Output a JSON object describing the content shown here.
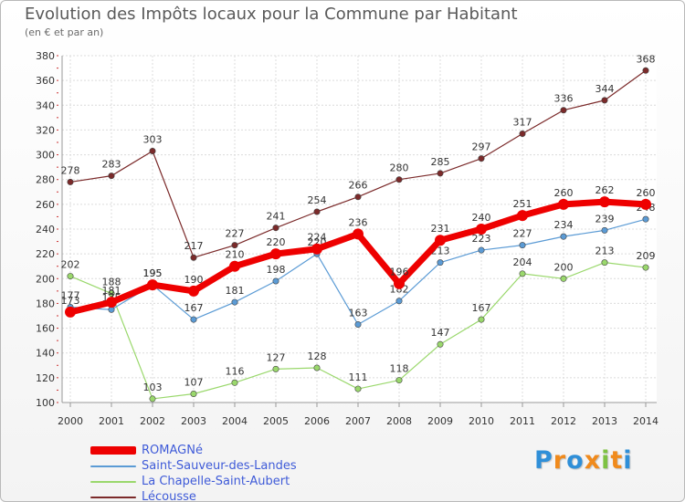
{
  "title": "Evolution des Impôts locaux pour la Commune par Habitant",
  "subtitle": "(en € et par an)",
  "brand": {
    "letters": [
      "P",
      "r",
      "o",
      "x",
      "i",
      "t",
      "i"
    ],
    "colors": [
      "#2f8fd8",
      "#f08a1c",
      "#2f8fd8",
      "#f08a1c",
      "#7dc242",
      "#f08a1c",
      "#2f8fd8"
    ]
  },
  "chart_data": {
    "type": "line",
    "x": [
      2000,
      2001,
      2002,
      2003,
      2004,
      2005,
      2006,
      2007,
      2008,
      2009,
      2010,
      2011,
      2012,
      2013,
      2014
    ],
    "ylim": [
      100,
      380
    ],
    "yticks": [
      100,
      120,
      140,
      160,
      180,
      200,
      220,
      240,
      260,
      280,
      300,
      320,
      340,
      360,
      380
    ],
    "grid": true,
    "legend_position": "bottom-left",
    "series": [
      {
        "name": "Lécousse",
        "color": "#7b2a2a",
        "values": [
          278,
          283,
          303,
          217,
          227,
          241,
          254,
          266,
          280,
          285,
          297,
          317,
          336,
          344,
          368
        ]
      },
      {
        "name": "La Chapelle-Saint-Aubert",
        "color": "#9ad86c",
        "values": [
          202,
          188,
          103,
          107,
          116,
          127,
          128,
          111,
          118,
          147,
          167,
          204,
          200,
          213,
          209
        ]
      },
      {
        "name": "Saint-Sauveur-des-Landes",
        "color": "#5b9bd5",
        "values": [
          177,
          175,
          195,
          167,
          181,
          198,
          220,
          163,
          182,
          213,
          223,
          227,
          234,
          239,
          248
        ]
      },
      {
        "name": "ROMAGNé",
        "color": "#ee0000",
        "values": [
          173,
          181,
          195,
          190,
          210,
          220,
          224,
          236,
          196,
          231,
          240,
          251,
          260,
          262,
          260
        ]
      }
    ]
  }
}
